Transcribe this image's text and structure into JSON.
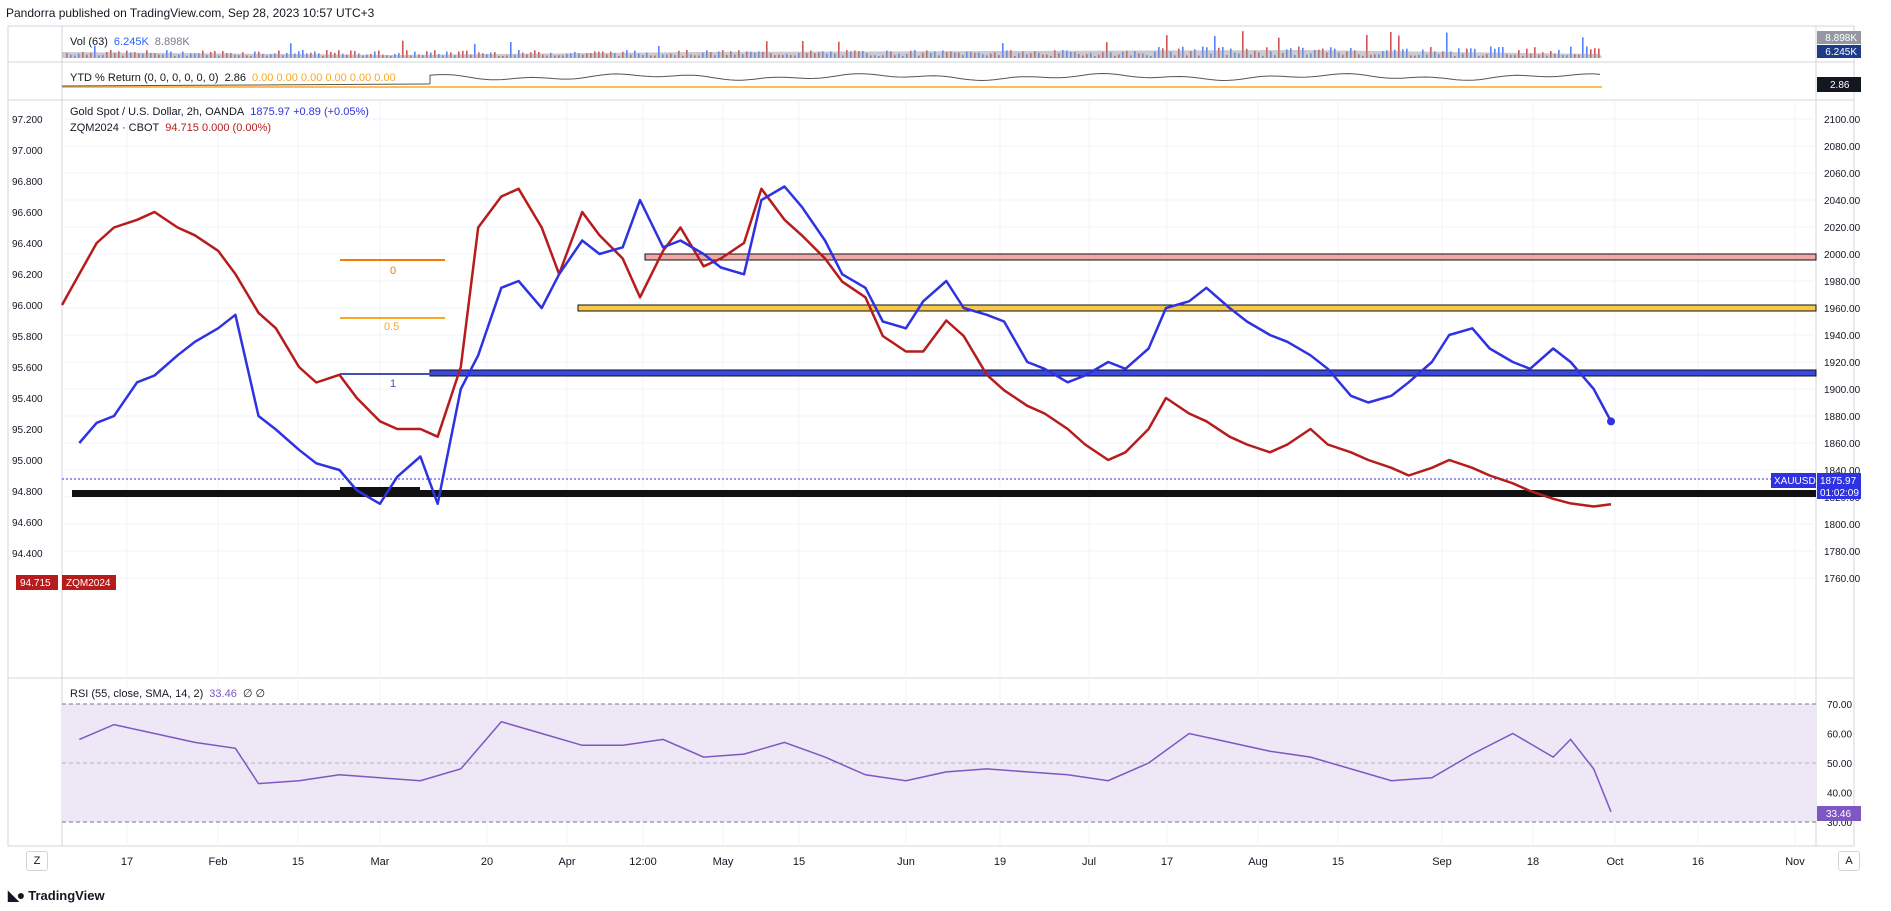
{
  "header": {
    "published": "Pandorra published on TradingView.com, Sep 28, 2023 10:57 UTC+3"
  },
  "footer": {
    "brand": "TradingView",
    "brand_icon": "tradingview-logo-icon"
  },
  "controls": {
    "left_button": "Z",
    "right_button": "A"
  },
  "colors": {
    "gold": "#2f32e0",
    "zq": "#b71c1c",
    "rsi": "#7e57c2",
    "rsi_band": "#ede7f6",
    "level_yellow": "#f7c948",
    "level_red": "#e8a7a7",
    "level_blue": "#4a56e6",
    "level_black": "#111111",
    "fib_orange": "#f57c00",
    "fib_yellow": "#f9a825",
    "fib_blue": "#3f51b5"
  },
  "vol_pane": {
    "label": "Vol (63)",
    "value1": "6.245K",
    "value2": "8.898K",
    "badge_top": "8.898K",
    "badge_bottom": "6.245K"
  },
  "ytd_pane": {
    "label": "YTD % Return (0, 0, 0, 0, 0, 0)",
    "value": "2.86",
    "zeros": "0.00  0.00  0.00  0.00  0.00  0.00",
    "badge": "2.86"
  },
  "main_pane": {
    "legend_gold_name": "Gold Spot / U.S. Dollar, 2h, OANDA",
    "legend_gold_value": "1875.97  +0.89 (+0.05%)",
    "legend_zq_name": "ZQM2024 · CBOT",
    "legend_zq_value": "94.715  0.000 (0.00%)",
    "left_axis": [
      "97.200",
      "97.000",
      "96.800",
      "96.600",
      "96.400",
      "96.200",
      "96.000",
      "95.800",
      "95.600",
      "95.400",
      "95.200",
      "95.000",
      "94.800",
      "94.600",
      "94.400"
    ],
    "right_axis": [
      "2100.00",
      "2080.00",
      "2060.00",
      "2040.00",
      "2020.00",
      "2000.00",
      "1980.00",
      "1960.00",
      "1940.00",
      "1920.00",
      "1900.00",
      "1880.00",
      "1860.00",
      "1840.00",
      "1820.00",
      "1800.00",
      "1780.00",
      "1760.00"
    ],
    "left_badge_value": "94.715",
    "left_badge_label": "ZQM2024",
    "right_badge_label": "XAUUSD",
    "right_badge_value": "1875.97",
    "right_badge_timer": "01:02:09",
    "fib_labels": [
      "0",
      "0.5",
      "1"
    ]
  },
  "rsi_pane": {
    "label": "RSI (55, close, SMA, 14, 2)",
    "value": "33.46",
    "extra": "∅  ∅",
    "axis": [
      "70.00",
      "60.00",
      "50.00",
      "40.00",
      "30.00"
    ],
    "badge": "33.46"
  },
  "time_axis": [
    "17",
    "Feb",
    "15",
    "Mar",
    "20",
    "Apr",
    "12:00",
    "May",
    "15",
    "Jun",
    "19",
    "Jul",
    "17",
    "Aug",
    "15",
    "Sep",
    "18",
    "Oct",
    "16",
    "Nov"
  ],
  "chart_data": [
    {
      "type": "line",
      "title": "Gold Spot / U.S. Dollar, 2h, OANDA",
      "series": [
        {
          "name": "XAUUSD",
          "x": [
            "Jan 6",
            "Jan 9",
            "Jan 12",
            "Jan 16",
            "Jan 19",
            "Jan 23",
            "Jan 26",
            "Jan 30",
            "Feb 2",
            "Feb 6",
            "Feb 9",
            "Feb 13",
            "Feb 16",
            "Feb 20",
            "Feb 23",
            "Feb 27",
            "Mar 2",
            "Mar 6",
            "Mar 9",
            "Mar 13",
            "Mar 16",
            "Mar 20",
            "Mar 23",
            "Mar 27",
            "Mar 30",
            "Apr 3",
            "Apr 6",
            "Apr 10",
            "Apr 13",
            "Apr 17",
            "Apr 20",
            "Apr 24",
            "Apr 27",
            "May 1",
            "May 4",
            "May 8",
            "May 11",
            "May 15",
            "May 18",
            "May 22",
            "May 25",
            "May 29",
            "Jun 1",
            "Jun 5",
            "Jun 8",
            "Jun 12",
            "Jun 15",
            "Jun 19",
            "Jun 22",
            "Jun 26",
            "Jun 29",
            "Jul 3",
            "Jul 6",
            "Jul 10",
            "Jul 13",
            "Jul 17",
            "Jul 20",
            "Jul 24",
            "Jul 27",
            "Jul 31",
            "Aug 3",
            "Aug 7",
            "Aug 10",
            "Aug 14",
            "Aug 17",
            "Aug 21",
            "Aug 24",
            "Aug 28",
            "Aug 31",
            "Sep 4",
            "Sep 7",
            "Sep 11",
            "Sep 14",
            "Sep 18",
            "Sep 21",
            "Sep 25",
            "Sep 28"
          ],
          "values": [
            1860,
            1875,
            1880,
            1905,
            1910,
            1925,
            1935,
            1945,
            1955,
            1880,
            1870,
            1855,
            1845,
            1840,
            1825,
            1815,
            1835,
            1850,
            1815,
            1900,
            1925,
            1975,
            1980,
            1960,
            1985,
            2010,
            2000,
            2005,
            2040,
            2005,
            2010,
            2000,
            1990,
            1985,
            2040,
            2050,
            2035,
            2010,
            1985,
            1975,
            1950,
            1945,
            1965,
            1980,
            1960,
            1955,
            1950,
            1920,
            1915,
            1905,
            1910,
            1920,
            1915,
            1930,
            1960,
            1965,
            1975,
            1960,
            1950,
            1940,
            1935,
            1925,
            1915,
            1895,
            1890,
            1895,
            1905,
            1920,
            1940,
            1945,
            1930,
            1920,
            1915,
            1930,
            1920,
            1900,
            1875.97
          ]
        }
      ],
      "ylabel": "",
      "ylim": [
        1750,
        2110
      ]
    },
    {
      "type": "line",
      "title": "ZQM2024 · CBOT",
      "series": [
        {
          "name": "ZQM2024",
          "x": [
            "Jan 3",
            "Jan 6",
            "Jan 9",
            "Jan 12",
            "Jan 16",
            "Jan 19",
            "Jan 23",
            "Jan 26",
            "Jan 30",
            "Feb 2",
            "Feb 6",
            "Feb 9",
            "Feb 13",
            "Feb 16",
            "Feb 20",
            "Feb 23",
            "Feb 27",
            "Mar 2",
            "Mar 6",
            "Mar 9",
            "Mar 13",
            "Mar 16",
            "Mar 20",
            "Mar 23",
            "Mar 27",
            "Mar 30",
            "Apr 3",
            "Apr 6",
            "Apr 10",
            "Apr 13",
            "Apr 17",
            "Apr 20",
            "Apr 24",
            "Apr 27",
            "May 1",
            "May 4",
            "May 8",
            "May 11",
            "May 15",
            "May 18",
            "May 22",
            "May 25",
            "May 29",
            "Jun 1",
            "Jun 5",
            "Jun 8",
            "Jun 12",
            "Jun 15",
            "Jun 19",
            "Jun 22",
            "Jun 26",
            "Jun 29",
            "Jul 3",
            "Jul 6",
            "Jul 10",
            "Jul 13",
            "Jul 17",
            "Jul 20",
            "Jul 24",
            "Jul 27",
            "Jul 31",
            "Aug 3",
            "Aug 7",
            "Aug 10",
            "Aug 14",
            "Aug 17",
            "Aug 21",
            "Aug 24",
            "Aug 28",
            "Aug 31",
            "Sep 4",
            "Sep 7",
            "Sep 11",
            "Sep 14",
            "Sep 18",
            "Sep 21",
            "Sep 25",
            "Sep 28"
          ],
          "values": [
            96.0,
            96.2,
            96.4,
            96.5,
            96.55,
            96.6,
            96.5,
            96.45,
            96.35,
            96.2,
            95.95,
            95.85,
            95.6,
            95.5,
            95.55,
            95.4,
            95.25,
            95.2,
            95.2,
            95.15,
            95.6,
            96.5,
            96.7,
            96.75,
            96.5,
            96.2,
            96.6,
            96.45,
            96.3,
            96.05,
            96.35,
            96.5,
            96.25,
            96.3,
            96.4,
            96.75,
            96.55,
            96.45,
            96.3,
            96.15,
            96.05,
            95.8,
            95.7,
            95.7,
            95.9,
            95.8,
            95.55,
            95.45,
            95.35,
            95.3,
            95.2,
            95.1,
            95.0,
            95.05,
            95.2,
            95.4,
            95.3,
            95.25,
            95.15,
            95.1,
            95.05,
            95.1,
            95.2,
            95.1,
            95.05,
            95.0,
            94.95,
            94.9,
            94.95,
            95.0,
            94.95,
            94.9,
            94.85,
            94.8,
            94.75,
            94.72,
            94.7,
            94.715
          ]
        }
      ],
      "ylabel": "",
      "ylim": [
        94.2,
        97.3
      ]
    },
    {
      "type": "line",
      "title": "RSI (55, close, SMA, 14, 2)",
      "series": [
        {
          "name": "RSI",
          "x": [
            "Jan 6",
            "Jan 12",
            "Jan 19",
            "Jan 26",
            "Feb 2",
            "Feb 6",
            "Feb 13",
            "Feb 20",
            "Feb 27",
            "Mar 6",
            "Mar 13",
            "Mar 20",
            "Mar 27",
            "Apr 3",
            "Apr 10",
            "Apr 17",
            "Apr 24",
            "May 1",
            "May 8",
            "May 15",
            "May 22",
            "May 29",
            "Jun 5",
            "Jun 12",
            "Jun 19",
            "Jun 26",
            "Jul 3",
            "Jul 10",
            "Jul 17",
            "Jul 24",
            "Jul 31",
            "Aug 7",
            "Aug 14",
            "Aug 21",
            "Aug 28",
            "Sep 4",
            "Sep 11",
            "Sep 18",
            "Sep 21",
            "Sep 25",
            "Sep 28"
          ],
          "values": [
            58,
            63,
            60,
            57,
            55,
            43,
            44,
            46,
            45,
            44,
            48,
            64,
            60,
            56,
            56,
            58,
            52,
            53,
            57,
            52,
            46,
            44,
            47,
            48,
            47,
            46,
            44,
            50,
            60,
            57,
            54,
            52,
            48,
            44,
            45,
            53,
            60,
            52,
            58,
            48,
            33.46
          ]
        }
      ],
      "ylim": [
        25,
        73
      ]
    }
  ]
}
